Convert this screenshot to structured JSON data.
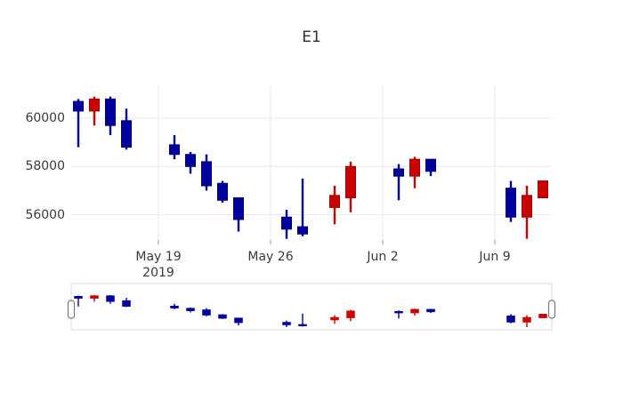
{
  "title": "E1",
  "colors": {
    "background": "#ffffff",
    "increasing": "#cc0000",
    "increasing_line": "#990000",
    "decreasing": "#0000a0",
    "decreasing_line": "#00006e",
    "grid": "#e9e9e9",
    "tick_text": "#3a3a3a",
    "title_text": "#2f2f2f",
    "axis_tick_mark": "#9a9a9a",
    "slider_border": "#dcdcdc",
    "handle_fill": "#ffffff",
    "handle_border": "#777777"
  },
  "chart_data": {
    "type": "candlestick",
    "title": "E1",
    "legend": "none",
    "grid": "on",
    "increasing_color": "#cc0000",
    "decreasing_color": "#0000a0",
    "y_axis": {
      "range": [
        54950,
        61330
      ],
      "ticks": [
        {
          "label": "60000",
          "value": 60000
        },
        {
          "label": "58000",
          "value": 58000
        },
        {
          "label": "56000",
          "value": 56000
        }
      ]
    },
    "x_axis": {
      "ticks": [
        {
          "label": "May 19",
          "year": "2019",
          "date": "2019-05-19"
        },
        {
          "label": "May 26",
          "year": "",
          "date": "2019-05-26"
        },
        {
          "label": "Jun 2",
          "year": "",
          "date": "2019-06-02"
        },
        {
          "label": "Jun 9",
          "year": "",
          "date": "2019-06-09"
        }
      ]
    },
    "rangeslider": {
      "visible": true,
      "range": [
        55000,
        60900
      ]
    },
    "candles": [
      {
        "date": "2019-05-14",
        "open": 60700,
        "high": 60800,
        "low": 58800,
        "close": 60300
      },
      {
        "date": "2019-05-15",
        "open": 60300,
        "high": 60900,
        "low": 59700,
        "close": 60800
      },
      {
        "date": "2019-05-16",
        "open": 60800,
        "high": 60900,
        "low": 59300,
        "close": 59700
      },
      {
        "date": "2019-05-17",
        "open": 59900,
        "high": 60400,
        "low": 58700,
        "close": 58800
      },
      {
        "date": "2019-05-20",
        "open": 58900,
        "high": 59300,
        "low": 58300,
        "close": 58500
      },
      {
        "date": "2019-05-21",
        "open": 58500,
        "high": 58600,
        "low": 57700,
        "close": 58000
      },
      {
        "date": "2019-05-22",
        "open": 58200,
        "high": 58500,
        "low": 57000,
        "close": 57200
      },
      {
        "date": "2019-05-23",
        "open": 57300,
        "high": 57400,
        "low": 56500,
        "close": 56600
      },
      {
        "date": "2019-05-24",
        "open": 56700,
        "high": 56700,
        "low": 55300,
        "close": 55800
      },
      {
        "date": "2019-05-27",
        "open": 55900,
        "high": 56200,
        "low": 55000,
        "close": 55400
      },
      {
        "date": "2019-05-28",
        "open": 55500,
        "high": 57500,
        "low": 55100,
        "close": 55200
      },
      {
        "date": "2019-05-30",
        "open": 56300,
        "high": 57200,
        "low": 55600,
        "close": 56800
      },
      {
        "date": "2019-05-31",
        "open": 56700,
        "high": 58200,
        "low": 56100,
        "close": 58000
      },
      {
        "date": "2019-06-03",
        "open": 57900,
        "high": 58100,
        "low": 56600,
        "close": 57600
      },
      {
        "date": "2019-06-04",
        "open": 57600,
        "high": 58400,
        "low": 57100,
        "close": 58300
      },
      {
        "date": "2019-06-05",
        "open": 58300,
        "high": 58300,
        "low": 57600,
        "close": 57800
      },
      {
        "date": "2019-06-10",
        "open": 57100,
        "high": 57400,
        "low": 55700,
        "close": 55900
      },
      {
        "date": "2019-06-11",
        "open": 55900,
        "high": 57200,
        "low": 55000,
        "close": 56800
      },
      {
        "date": "2019-06-12",
        "open": 56700,
        "high": 57400,
        "low": 56700,
        "close": 57400
      }
    ]
  }
}
